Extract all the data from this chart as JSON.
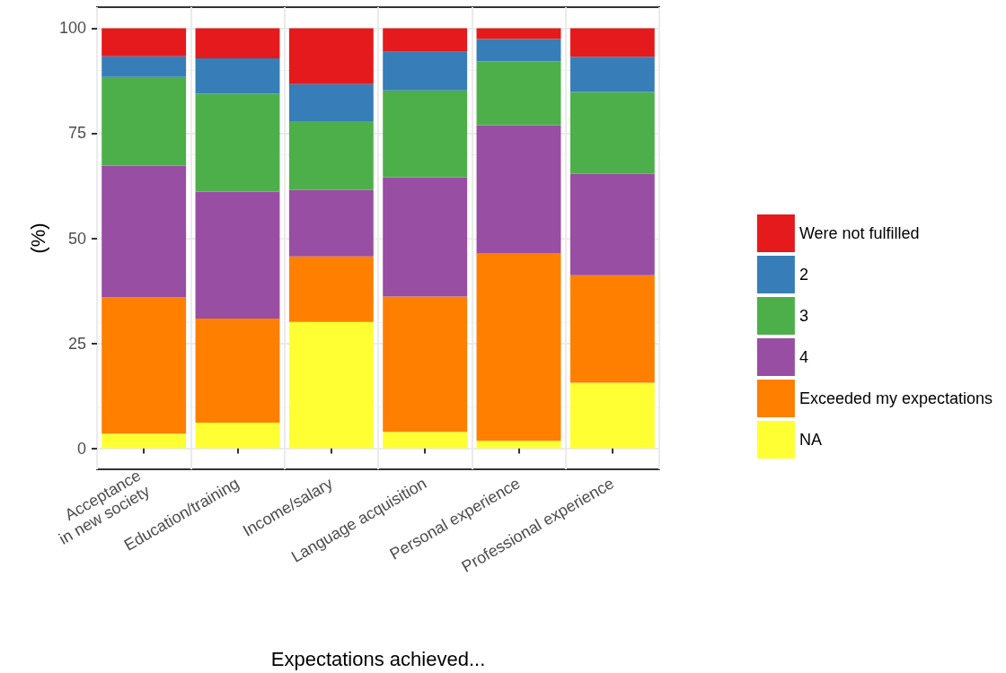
{
  "chart_data": {
    "type": "bar",
    "stacked": true,
    "xlabel": "Expectations achieved...",
    "ylabel": "(%)",
    "categories": [
      "Acceptance\nin new society",
      "Education/training",
      "Income/salary",
      "Language acquisition",
      "Personal experience",
      "Professional experience"
    ],
    "series": [
      {
        "name": "NA",
        "color": "#ffff33",
        "values": [
          3.5,
          6.1,
          30.1,
          3.9,
          1.8,
          15.6
        ]
      },
      {
        "name": "Exceeded my expectations",
        "color": "#ff7f00",
        "values": [
          32.4,
          24.8,
          15.6,
          32.2,
          44.7,
          25.6
        ]
      },
      {
        "name": "4",
        "color": "#984ea3",
        "values": [
          31.4,
          30.2,
          15.8,
          28.4,
          30.4,
          24.1
        ]
      },
      {
        "name": "3",
        "color": "#4daf4a",
        "values": [
          21.1,
          23.3,
          16.4,
          20.7,
          15.2,
          19.5
        ]
      },
      {
        "name": "2",
        "color": "#377eb8",
        "values": [
          4.9,
          8.4,
          8.8,
          9.2,
          5.3,
          8.4
        ]
      },
      {
        "name": "Were not fulfilled",
        "color": "#e41a1c",
        "values": [
          6.7,
          7.2,
          13.3,
          5.6,
          2.6,
          6.8
        ]
      }
    ],
    "ylim": [
      -5,
      105
    ],
    "yticks": [
      0,
      25,
      50,
      75,
      100
    ],
    "grid": true,
    "legend": "right"
  }
}
